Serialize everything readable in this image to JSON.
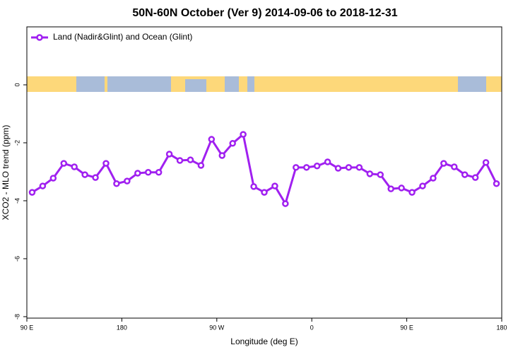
{
  "chart_data": {
    "type": "line",
    "title": "50N-60N October (Ver 9)   2014-09-06 to 2018-12-31",
    "x_label": "Longitude (deg E)",
    "y_label": "XCO2 - MLO trend (ppm)",
    "x": [
      95,
      105,
      115,
      125,
      135,
      145,
      155,
      165,
      175,
      185,
      195,
      205,
      215,
      225,
      235,
      245,
      255,
      265,
      275,
      285,
      295,
      305,
      315,
      325,
      335,
      345,
      355,
      365,
      375,
      385,
      395,
      405,
      415,
      425,
      435,
      445,
      455,
      465,
      475,
      485,
      495,
      505,
      515,
      525,
      535
    ],
    "series": [
      {
        "name": "Land (Nadir&Glint) and Ocean (Glint)",
        "color": "#a020f0",
        "values": [
          -3.71,
          -3.49,
          -3.22,
          -2.71,
          -2.83,
          -3.1,
          -3.2,
          -2.71,
          -3.41,
          -3.32,
          -3.05,
          -3.02,
          -3.02,
          -2.39,
          -2.61,
          -2.59,
          -2.78,
          -1.88,
          -2.44,
          -2.02,
          -1.71,
          -3.51,
          -3.71,
          -3.49,
          -4.1,
          -2.85,
          -2.85,
          -2.8,
          -2.66,
          -2.88,
          -2.85,
          -2.85,
          -3.07,
          -3.1,
          -3.59,
          -3.56,
          -3.71,
          -3.49,
          -3.22,
          -2.71,
          -2.83,
          -3.1,
          -3.2,
          -2.68,
          -3.41
        ]
      }
    ],
    "xlim": [
      90,
      540
    ],
    "xticks": [
      {
        "value": 90,
        "label": "90 E"
      },
      180,
      {
        "value": 270,
        "label": "90 W"
      },
      {
        "value": 360,
        "label": "0"
      },
      {
        "value": 450,
        "label": "90 E"
      },
      {
        "value": 540,
        "label": "180"
      }
    ],
    "ylim": [
      -8.05,
      2
    ],
    "yticks": [
      0,
      -2,
      -4,
      -6,
      -8
    ],
    "legend": "top-left"
  }
}
